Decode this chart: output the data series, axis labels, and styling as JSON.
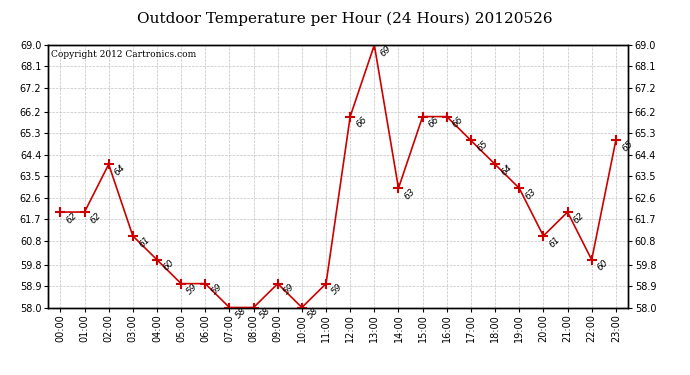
{
  "title": "Outdoor Temperature per Hour (24 Hours) 20120526",
  "copyright_text": "Copyright 2012 Cartronics.com",
  "hours": [
    "00:00",
    "01:00",
    "02:00",
    "03:00",
    "04:00",
    "05:00",
    "06:00",
    "07:00",
    "08:00",
    "09:00",
    "10:00",
    "11:00",
    "12:00",
    "13:00",
    "14:00",
    "15:00",
    "16:00",
    "17:00",
    "18:00",
    "19:00",
    "20:00",
    "21:00",
    "22:00",
    "23:00"
  ],
  "values": [
    62,
    62,
    64,
    61,
    60,
    59,
    59,
    58,
    58,
    59,
    58,
    59,
    66,
    69,
    63,
    66,
    66,
    65,
    64,
    63,
    61,
    62,
    60,
    65
  ],
  "ylim_min": 58.0,
  "ylim_max": 69.0,
  "yticks": [
    58.0,
    58.9,
    59.8,
    60.8,
    61.7,
    62.6,
    63.5,
    64.4,
    65.3,
    66.2,
    67.2,
    68.1,
    69.0
  ],
  "line_color": "#cc0000",
  "marker": "+",
  "marker_size": 7,
  "marker_color": "#cc0000",
  "bg_color": "#ffffff",
  "grid_color": "#bbbbbb",
  "title_fontsize": 11,
  "label_fontsize": 7,
  "annot_fontsize": 6.5,
  "copyright_fontsize": 6.5
}
